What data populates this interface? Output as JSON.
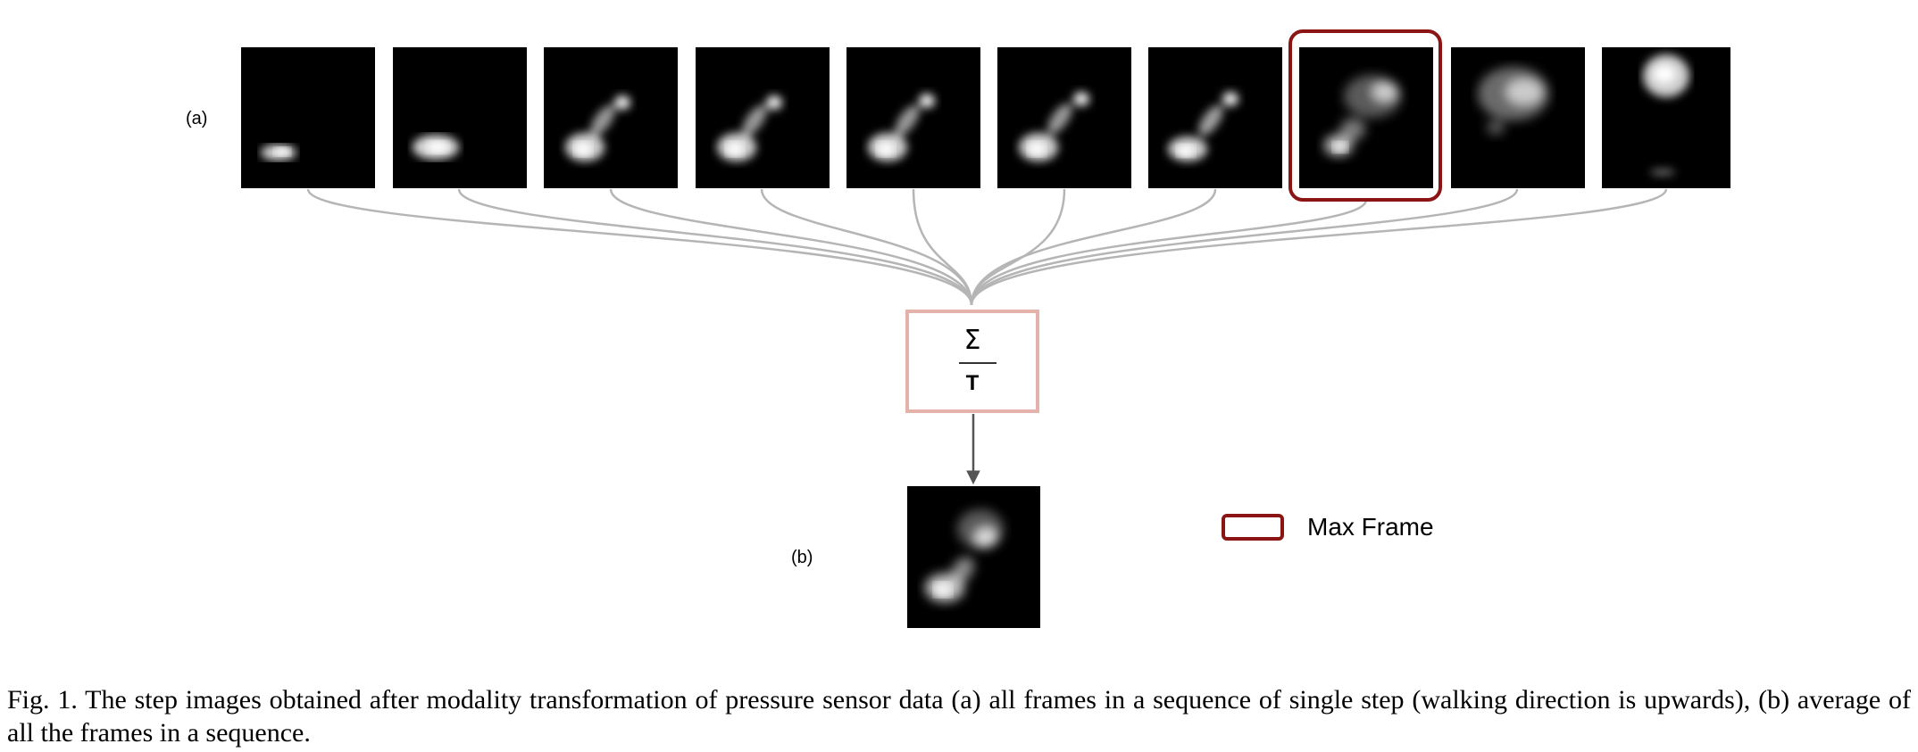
{
  "figure": {
    "label_a": "(a)",
    "label_b": "(b)",
    "sum_symbol": "Σ",
    "sum_divisor": "T",
    "legend_label": "Max Frame",
    "highlight_color": "#8b1414",
    "sum_box_color": "#e5b2ab",
    "connector_color": "#b5b5b5",
    "frames": [
      {
        "index": 1,
        "is_max": false
      },
      {
        "index": 2,
        "is_max": false
      },
      {
        "index": 3,
        "is_max": false
      },
      {
        "index": 4,
        "is_max": false
      },
      {
        "index": 5,
        "is_max": false
      },
      {
        "index": 6,
        "is_max": false
      },
      {
        "index": 7,
        "is_max": false
      },
      {
        "index": 8,
        "is_max": true
      },
      {
        "index": 9,
        "is_max": false
      },
      {
        "index": 10,
        "is_max": false
      }
    ]
  },
  "caption": {
    "text": "Fig. 1.  The step images obtained after modality transformation of pressure sensor data (a) all frames in a sequence of single step (walking direction is upwards), (b) average of all the frames in a sequence."
  }
}
